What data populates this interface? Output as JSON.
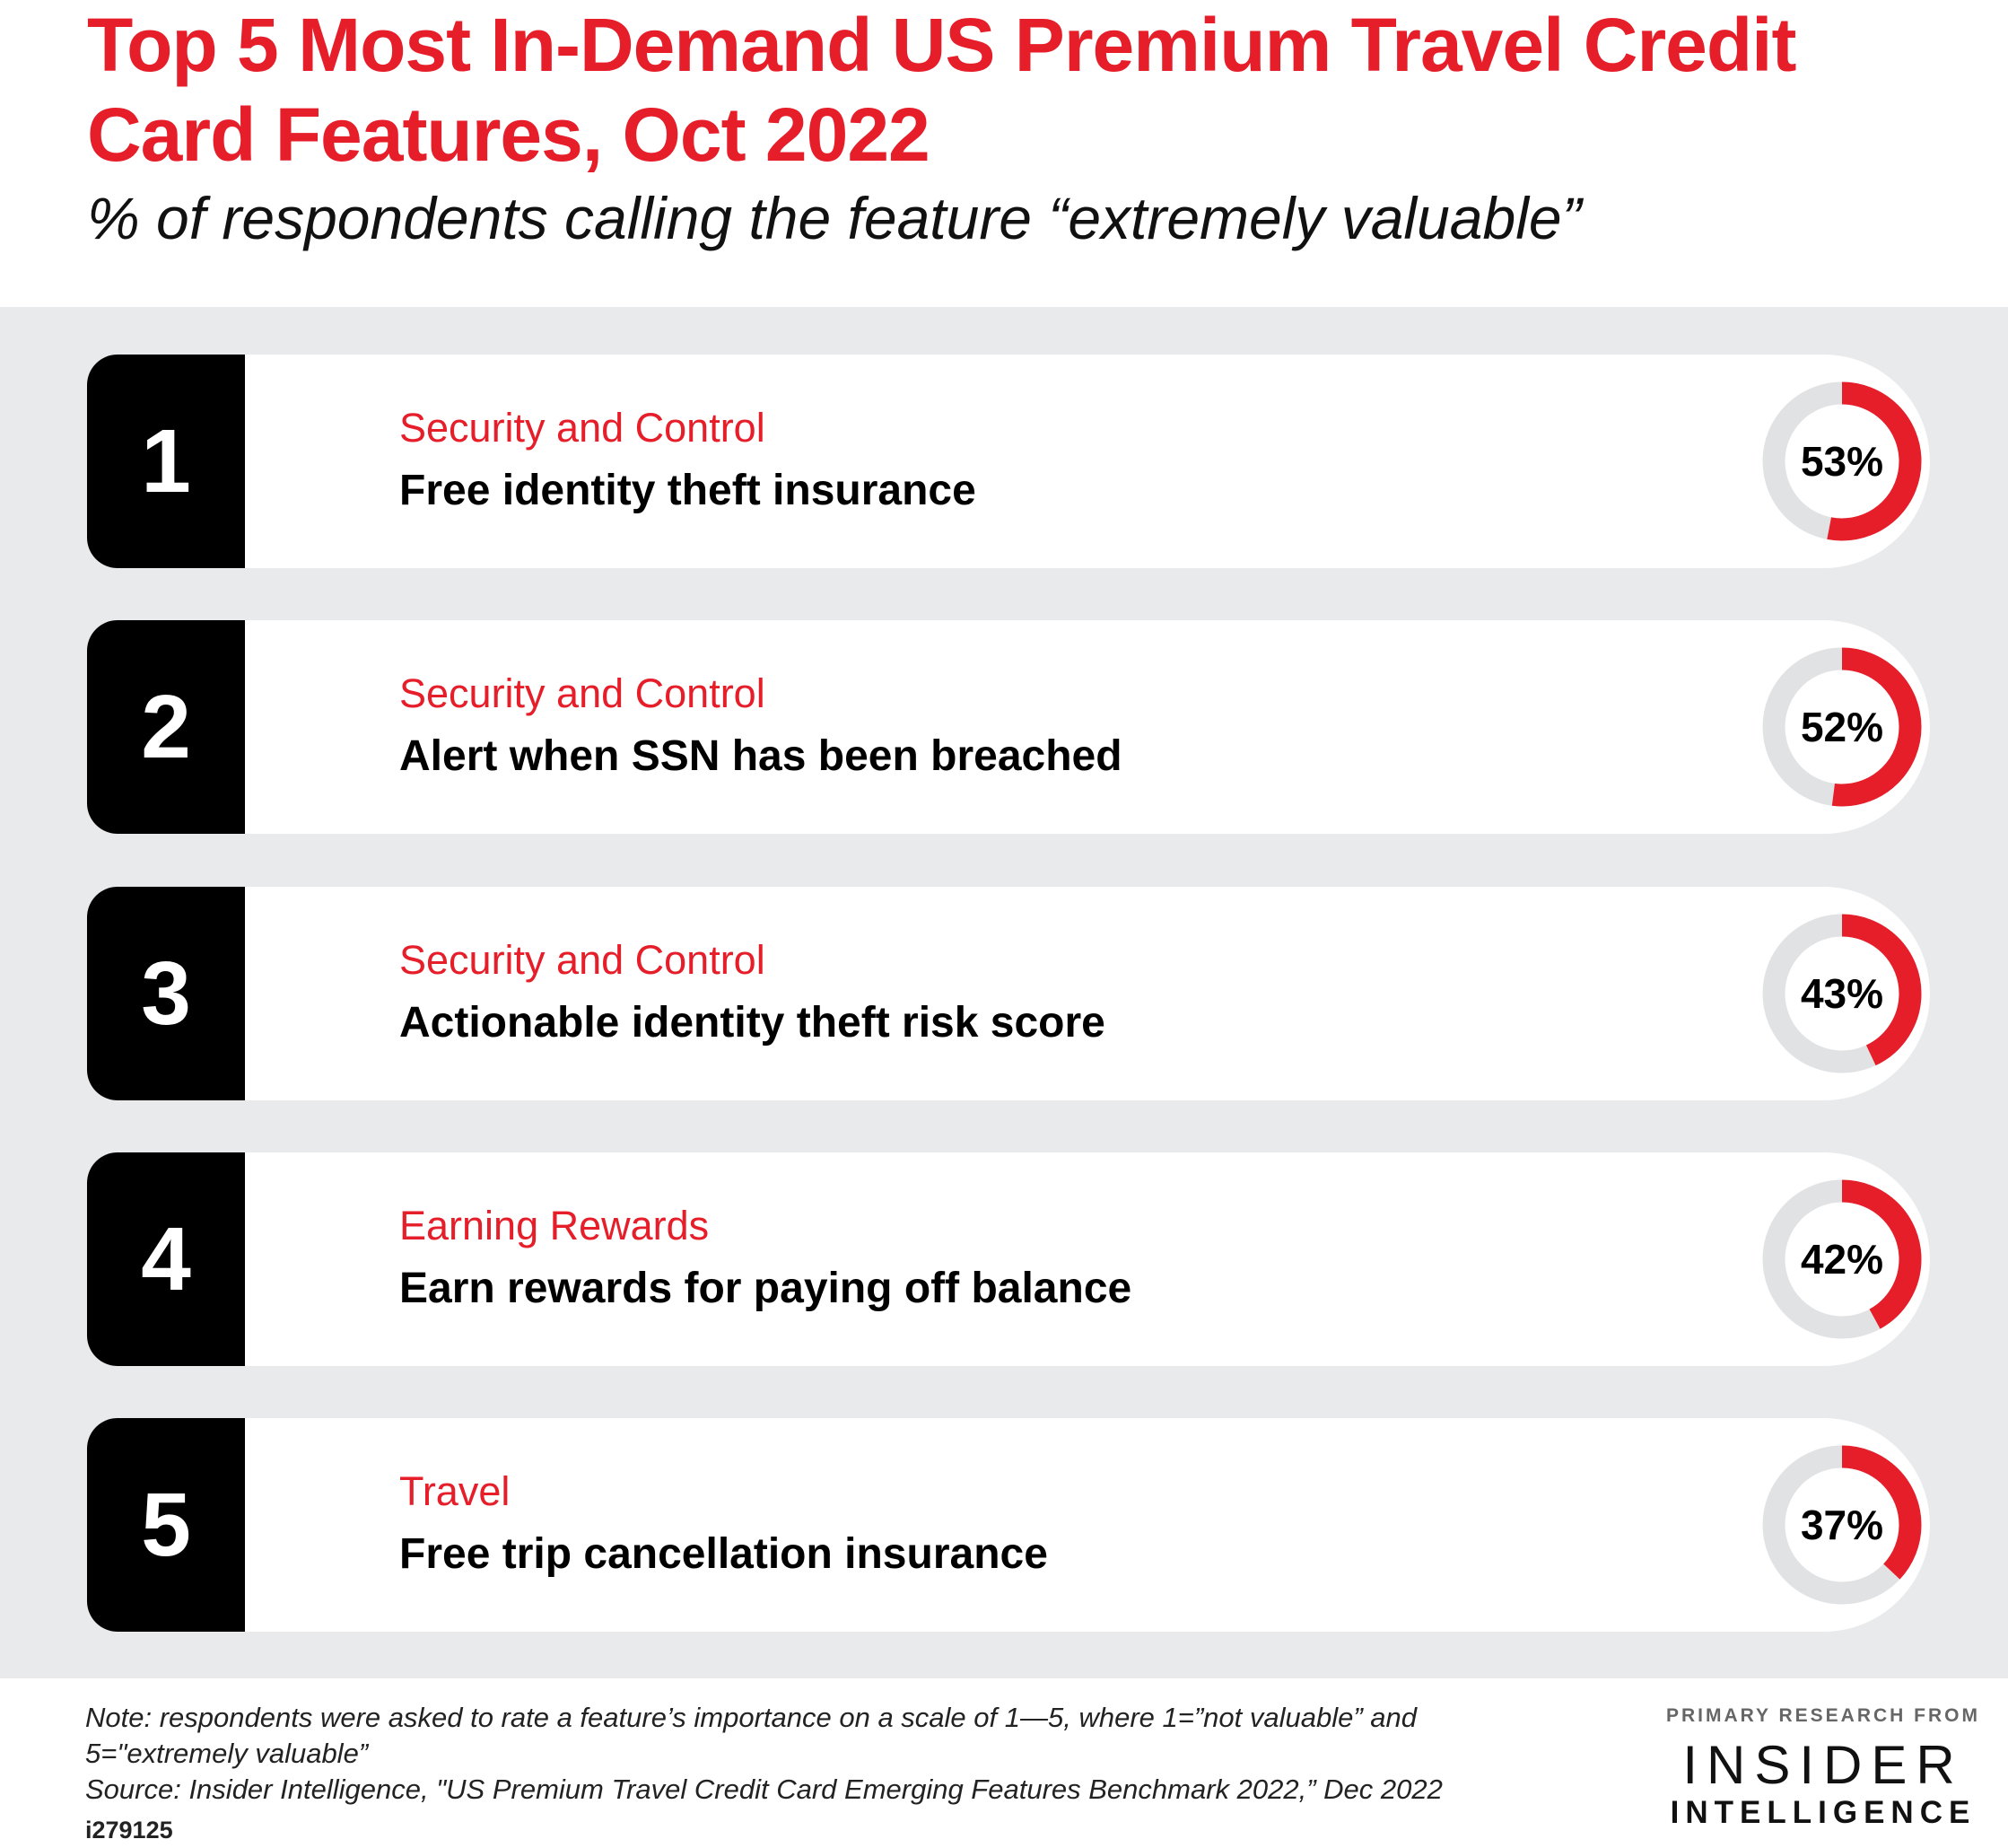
{
  "chart_data": {
    "type": "donut-list",
    "title": "Top 5 Most In-Demand US Premium Travel Credit Card Features, Oct 2022",
    "subtitle": "% of respondents calling the feature “extremely valuable”",
    "colors": {
      "accent": "#e61e2a",
      "track": "#e1e2e4",
      "rank_box": "#000000",
      "band": "#e9eaec"
    },
    "items": [
      {
        "rank": "1",
        "category": "Security and Control",
        "feature": "Free identity theft insurance",
        "value": 53,
        "label": "53%"
      },
      {
        "rank": "2",
        "category": "Security and Control",
        "feature": "Alert when SSN has been breached",
        "value": 52,
        "label": "52%"
      },
      {
        "rank": "3",
        "category": "Security and Control",
        "feature": "Actionable identity theft risk score",
        "value": 43,
        "label": "43%"
      },
      {
        "rank": "4",
        "category": "Earning Rewards",
        "feature": "Earn rewards for paying off balance",
        "value": 42,
        "label": "42%"
      },
      {
        "rank": "5",
        "category": "Travel",
        "feature": "Free trip cancellation insurance",
        "value": 37,
        "label": "37%"
      }
    ]
  },
  "footer": {
    "note_line1": "Note: respondents were asked to rate a feature’s importance on a scale of 1—5, where 1=”not valuable” and",
    "note_line2": "5=\"extremely valuable”",
    "source": "Source: Insider Intelligence, \"US Premium Travel Credit Card Emerging Features Benchmark 2022,” Dec 2022",
    "id": "i279125"
  },
  "logo": {
    "top": "PRIMARY RESEARCH FROM",
    "middle": "INSIDER",
    "bottom": "INTELLIGENCE"
  }
}
